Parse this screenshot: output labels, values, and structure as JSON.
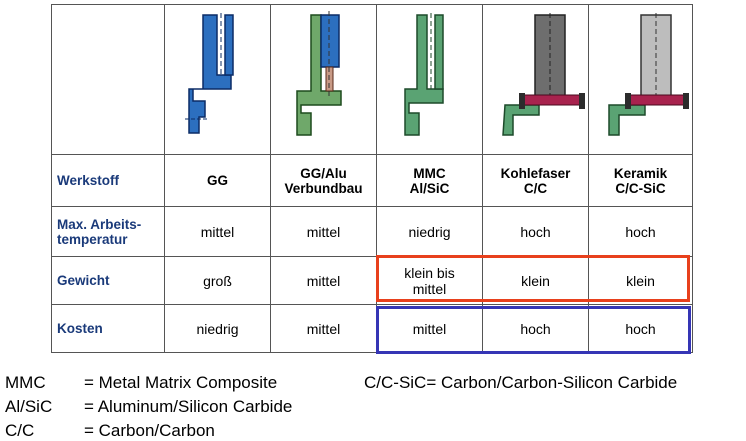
{
  "table": {
    "columns": [
      {
        "label": "GG",
        "image": "gg-flange-drawing"
      },
      {
        "label": "GG/Alu\nVerbundbau",
        "image": "gg-alu-flange-drawing"
      },
      {
        "label": "MMC\nAl/SiC",
        "image": "mmc-flange-drawing"
      },
      {
        "label": "Kohlefaser\nC/C",
        "image": "carbon-fiber-flange-drawing"
      },
      {
        "label": "Keramik\nC/C-SiC",
        "image": "ceramic-flange-drawing"
      }
    ],
    "rows": [
      {
        "label": "Werkstoff"
      },
      {
        "label": "Max. Arbeits-\ntemperatur",
        "values": [
          "mittel",
          "mittel",
          "niedrig",
          "hoch",
          "hoch"
        ]
      },
      {
        "label": "Gewicht",
        "values": [
          "groß",
          "mittel",
          "klein bis\nmittel",
          "klein",
          "klein"
        ]
      },
      {
        "label": "Kosten",
        "values": [
          "niedrig",
          "mittel",
          "mittel",
          "hoch",
          "hoch"
        ]
      }
    ]
  },
  "highlights": {
    "weight_color": "#e8401c",
    "cost_color": "#3535b5"
  },
  "colors": {
    "gg": "#2c6fbf",
    "gg_alu": "#6fa86a",
    "mmc": "#5aa373",
    "carbon": "#6e6e6e",
    "ceramic": "#bdbdbd",
    "bolt": "#a8234e"
  },
  "legend": [
    {
      "abbr": "MMC",
      "text": "= Metal Matrix Composite"
    },
    {
      "abbr": "Al/SiC",
      "text": "= Aluminum/Silicon Carbide"
    },
    {
      "abbr": "C/C",
      "text": "= Carbon/Carbon"
    }
  ],
  "legend_right": {
    "text": "C/C-SiC= Carbon/Carbon-Silicon Carbide"
  }
}
